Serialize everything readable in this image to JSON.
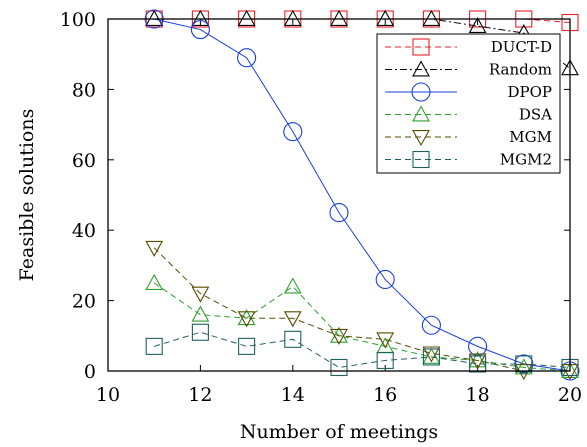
{
  "chart_data": {
    "type": "line",
    "title": "",
    "xlabel": "Number of meetings",
    "ylabel": "Feasible solutions",
    "xlim": [
      10,
      20
    ],
    "ylim": [
      0,
      100
    ],
    "xticks": [
      10,
      12,
      14,
      16,
      18,
      20
    ],
    "yticks": [
      0,
      20,
      40,
      60,
      80,
      100
    ],
    "grid": false,
    "legend_position": "top-right",
    "x": [
      11,
      12,
      13,
      14,
      15,
      16,
      17,
      18,
      19,
      20
    ],
    "series": [
      {
        "name": "DUCT-D",
        "color": "#e8202a",
        "dash": "dashed",
        "marker": "square",
        "values": [
          100,
          100,
          100,
          100,
          100,
          100,
          100,
          100,
          100,
          99
        ]
      },
      {
        "name": "Random",
        "color": "#000000",
        "dash": "dashdot",
        "marker": "triangle-up",
        "values": [
          100,
          100,
          100,
          100,
          100,
          100,
          100,
          98,
          96,
          86
        ]
      },
      {
        "name": "DPOP",
        "color": "#1a3ee6",
        "dash": "solid",
        "marker": "circle",
        "values": [
          100,
          97,
          89,
          68,
          45,
          26,
          13,
          7,
          2,
          0
        ]
      },
      {
        "name": "DSA",
        "color": "#2ca02c",
        "dash": "dashed",
        "marker": "triangle-up",
        "values": [
          25,
          16,
          15,
          24,
          10,
          7,
          4,
          3,
          1,
          0
        ]
      },
      {
        "name": "MGM",
        "color": "#5a4a00",
        "dash": "dashed",
        "marker": "triangle-down",
        "values": [
          35,
          22,
          15,
          15,
          10,
          9,
          5,
          3,
          0,
          0
        ]
      },
      {
        "name": "MGM2",
        "color": "#206060",
        "dash": "dashed",
        "marker": "square",
        "values": [
          7,
          11,
          7,
          9,
          1,
          3,
          4,
          2,
          2,
          1
        ]
      }
    ]
  }
}
